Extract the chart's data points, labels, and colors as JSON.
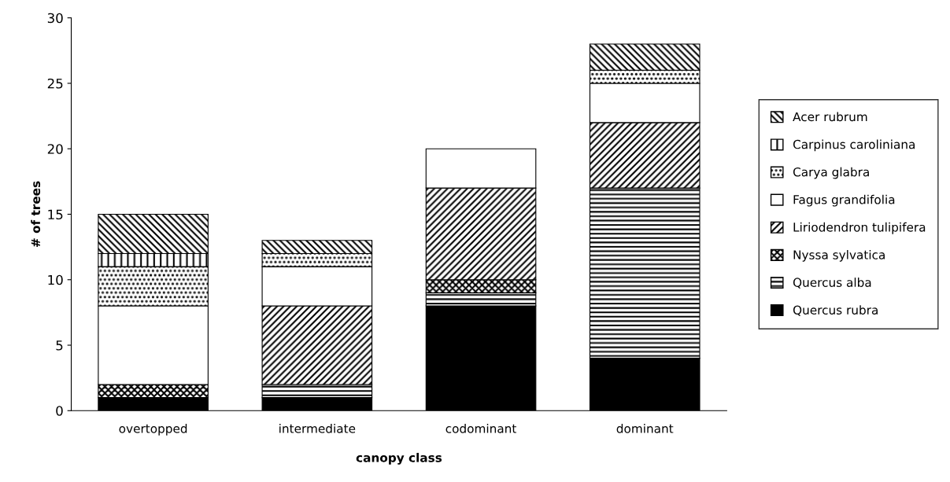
{
  "chart_data": {
    "type": "bar",
    "stacked": true,
    "xlabel": "canopy class",
    "ylabel": "# of trees",
    "categories": [
      "overtopped",
      "intermediate",
      "codominant",
      "dominant"
    ],
    "series": [
      {
        "name": "Quercus rubra",
        "color": "#000000",
        "values": [
          1,
          1,
          8,
          4
        ]
      },
      {
        "name": "Quercus alba",
        "color": "#000000",
        "values": [
          0,
          1,
          1,
          13
        ]
      },
      {
        "name": "Nyssa sylvatica",
        "color": "#000000",
        "values": [
          1,
          0,
          1,
          0
        ]
      },
      {
        "name": "Liriodendron tulipifera",
        "color": "#000000",
        "values": [
          0,
          6,
          7,
          5
        ]
      },
      {
        "name": "Fagus grandifolia",
        "color": "#ffffff",
        "values": [
          6,
          3,
          3,
          3
        ]
      },
      {
        "name": "Carya glabra",
        "color": "#000000",
        "values": [
          3,
          1,
          0,
          1
        ]
      },
      {
        "name": "Carpinus caroliniana",
        "color": "#000000",
        "values": [
          1,
          0,
          0,
          0
        ]
      },
      {
        "name": "Acer rubrum",
        "color": "#000000",
        "values": [
          3,
          1,
          0,
          2
        ]
      }
    ],
    "ylim": [
      0,
      30
    ],
    "yticks": [
      0,
      5,
      10,
      15,
      20,
      25,
      30
    ],
    "grid": false,
    "legend": "right"
  }
}
